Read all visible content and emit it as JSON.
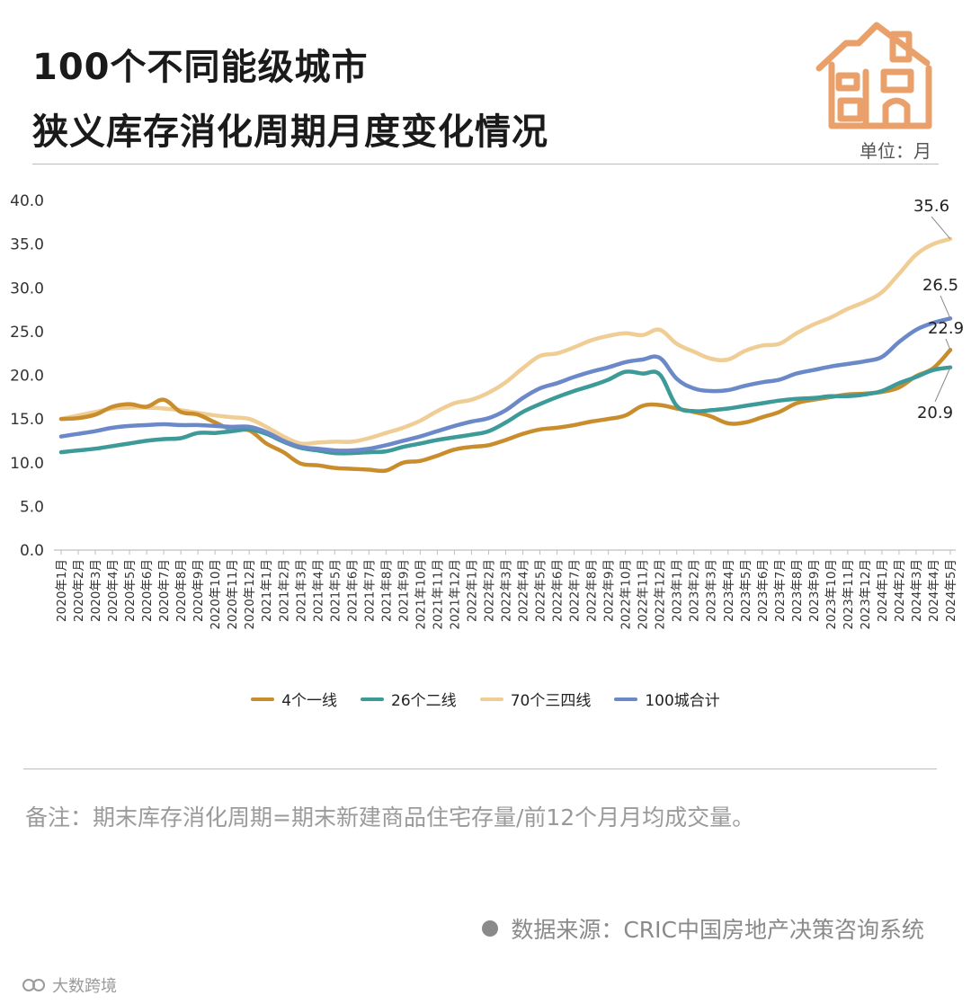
{
  "title": {
    "line1": "100个不同能级城市",
    "line2": "狭义库存消化周期月度变化情况"
  },
  "unit": "单位：月",
  "footnote": "备注：期末库存消化周期=期末新建商品住宅存量/前12个月月均成交量。",
  "source": "数据来源：CRIC中国房地产决策咨询系统",
  "brand": "大数跨境",
  "chart_data": {
    "type": "line",
    "title": "100个不同能级城市狭义库存消化周期月度变化情况",
    "unit": "月",
    "xlabel": "",
    "ylabel": "",
    "ylim": [
      0,
      40
    ],
    "yticks": [
      "0.0",
      "5.0",
      "10.0",
      "15.0",
      "20.0",
      "25.0",
      "30.0",
      "35.0",
      "40.0"
    ],
    "grid": false,
    "legend_position": "bottom",
    "categories": [
      "2020年1月",
      "2020年2月",
      "2020年3月",
      "2020年4月",
      "2020年5月",
      "2020年6月",
      "2020年7月",
      "2020年8月",
      "2020年9月",
      "2020年10月",
      "2020年11月",
      "2020年12月",
      "2021年1月",
      "2021年2月",
      "2021年3月",
      "2021年4月",
      "2021年5月",
      "2021年6月",
      "2021年7月",
      "2021年8月",
      "2021年9月",
      "2021年10月",
      "2021年11月",
      "2021年12月",
      "2022年1月",
      "2022年2月",
      "2022年3月",
      "2022年4月",
      "2022年5月",
      "2022年6月",
      "2022年7月",
      "2022年8月",
      "2022年9月",
      "2022年10月",
      "2022年11月",
      "2022年12月",
      "2023年1月",
      "2023年2月",
      "2023年3月",
      "2023年4月",
      "2023年5月",
      "2023年6月",
      "2023年7月",
      "2023年8月",
      "2023年9月",
      "2023年10月",
      "2023年11月",
      "2023年12月",
      "2024年1月",
      "2024年2月",
      "2024年3月",
      "2024年4月",
      "2024年5月"
    ],
    "series": [
      {
        "name": "4个一线",
        "color": "#c98d2e",
        "values": [
          15.0,
          15.1,
          15.5,
          16.4,
          16.7,
          16.4,
          17.2,
          15.8,
          15.5,
          14.6,
          13.8,
          13.7,
          12.2,
          11.2,
          9.9,
          9.7,
          9.4,
          9.3,
          9.2,
          9.1,
          10.0,
          10.2,
          10.8,
          11.5,
          11.8,
          12.0,
          12.6,
          13.3,
          13.8,
          14.0,
          14.3,
          14.7,
          15.0,
          15.4,
          16.5,
          16.6,
          16.2,
          15.8,
          15.3,
          14.5,
          14.6,
          15.2,
          15.8,
          16.8,
          17.2,
          17.5,
          17.8,
          17.9,
          18.1,
          18.6,
          19.9,
          20.8,
          22.9
        ],
        "end_label": "22.9"
      },
      {
        "name": "26个二线",
        "color": "#3c9a98",
        "values": [
          11.2,
          11.4,
          11.6,
          11.9,
          12.2,
          12.5,
          12.7,
          12.8,
          13.4,
          13.4,
          13.6,
          13.8,
          13.3,
          12.4,
          11.7,
          11.4,
          11.1,
          11.1,
          11.2,
          11.3,
          11.8,
          12.2,
          12.6,
          12.9,
          13.2,
          13.6,
          14.6,
          15.8,
          16.7,
          17.5,
          18.2,
          18.8,
          19.5,
          20.4,
          20.2,
          20.1,
          16.5,
          15.9,
          16.0,
          16.2,
          16.5,
          16.8,
          17.1,
          17.3,
          17.4,
          17.6,
          17.6,
          17.8,
          18.2,
          19.1,
          19.8,
          20.6,
          20.9
        ],
        "end_label": "20.9"
      },
      {
        "name": "70个三四线",
        "color": "#efcd94",
        "values": [
          15.0,
          15.4,
          15.8,
          16.2,
          16.3,
          16.3,
          16.2,
          16.0,
          15.7,
          15.4,
          15.2,
          15.0,
          14.1,
          13.0,
          12.2,
          12.3,
          12.4,
          12.4,
          12.8,
          13.4,
          14.0,
          14.8,
          15.9,
          16.8,
          17.2,
          18.0,
          19.2,
          20.8,
          22.2,
          22.5,
          23.2,
          24.0,
          24.5,
          24.8,
          24.6,
          25.2,
          23.6,
          22.7,
          21.9,
          21.8,
          22.8,
          23.4,
          23.6,
          24.8,
          25.8,
          26.6,
          27.6,
          28.4,
          29.5,
          31.6,
          33.8,
          35.0,
          35.6
        ],
        "end_label": "35.6"
      },
      {
        "name": "100城合计",
        "color": "#6b88c9",
        "values": [
          13.0,
          13.3,
          13.6,
          14.0,
          14.2,
          14.3,
          14.4,
          14.3,
          14.3,
          14.2,
          14.1,
          14.1,
          13.5,
          12.5,
          11.8,
          11.6,
          11.4,
          11.4,
          11.6,
          12.0,
          12.5,
          13.0,
          13.6,
          14.2,
          14.7,
          15.1,
          16.0,
          17.4,
          18.5,
          19.1,
          19.8,
          20.4,
          20.9,
          21.5,
          21.8,
          22.0,
          19.6,
          18.5,
          18.2,
          18.3,
          18.8,
          19.2,
          19.5,
          20.2,
          20.6,
          21.0,
          21.3,
          21.6,
          22.1,
          23.8,
          25.2,
          26.0,
          26.5
        ],
        "end_label": "26.5"
      }
    ]
  }
}
